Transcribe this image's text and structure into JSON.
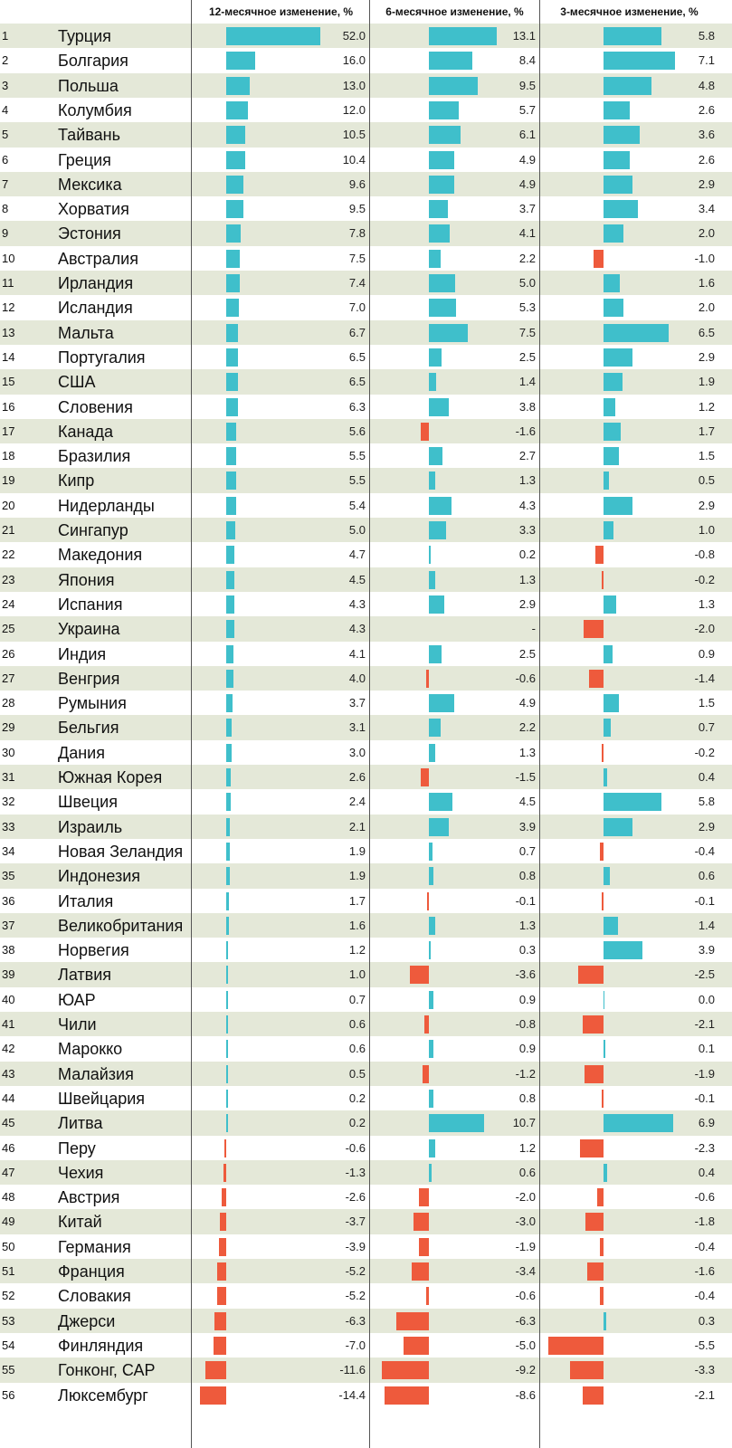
{
  "chart_data": {
    "type": "bar",
    "title": "",
    "headers": [
      "12-месячное изменение, %",
      "6-месячное изменение, %",
      "3-месячное изменение, %"
    ],
    "colors": {
      "positive": "#3fbfcb",
      "negative": "#ee5a3c"
    },
    "rows": [
      {
        "rank": "1",
        "country": "Турция",
        "v12": 52.0,
        "v6": 13.1,
        "v3": 5.8
      },
      {
        "rank": "2",
        "country": "Болгария",
        "v12": 16.0,
        "v6": 8.4,
        "v3": 7.1
      },
      {
        "rank": "3",
        "country": "Польша",
        "v12": 13.0,
        "v6": 9.5,
        "v3": 4.8
      },
      {
        "rank": "4",
        "country": "Колумбия",
        "v12": 12.0,
        "v6": 5.7,
        "v3": 2.6
      },
      {
        "rank": "5",
        "country": "Тайвань",
        "v12": 10.5,
        "v6": 6.1,
        "v3": 3.6
      },
      {
        "rank": "6",
        "country": "Греция",
        "v12": 10.4,
        "v6": 4.9,
        "v3": 2.6
      },
      {
        "rank": "7",
        "country": "Мексика",
        "v12": 9.6,
        "v6": 4.9,
        "v3": 2.9
      },
      {
        "rank": "8",
        "country": "Хорватия",
        "v12": 9.5,
        "v6": 3.7,
        "v3": 3.4
      },
      {
        "rank": "9",
        "country": "Эстония",
        "v12": 7.8,
        "v6": 4.1,
        "v3": 2.0
      },
      {
        "rank": "10",
        "country": "Австралия",
        "v12": 7.5,
        "v6": 2.2,
        "v3": -1.0
      },
      {
        "rank": "11",
        "country": "Ирландия",
        "v12": 7.4,
        "v6": 5.0,
        "v3": 1.6
      },
      {
        "rank": "12",
        "country": "Исландия",
        "v12": 7.0,
        "v6": 5.3,
        "v3": 2.0
      },
      {
        "rank": "13",
        "country": "Мальта",
        "v12": 6.7,
        "v6": 7.5,
        "v3": 6.5
      },
      {
        "rank": "14",
        "country": "Португалия",
        "v12": 6.5,
        "v6": 2.5,
        "v3": 2.9
      },
      {
        "rank": "15",
        "country": "США",
        "v12": 6.5,
        "v6": 1.4,
        "v3": 1.9
      },
      {
        "rank": "16",
        "country": "Словения",
        "v12": 6.3,
        "v6": 3.8,
        "v3": 1.2
      },
      {
        "rank": "17",
        "country": "Канада",
        "v12": 5.6,
        "v6": -1.6,
        "v3": 1.7
      },
      {
        "rank": "18",
        "country": "Бразилия",
        "v12": 5.5,
        "v6": 2.7,
        "v3": 1.5
      },
      {
        "rank": "19",
        "country": "Кипр",
        "v12": 5.5,
        "v6": 1.3,
        "v3": 0.5
      },
      {
        "rank": "20",
        "country": "Нидерланды",
        "v12": 5.4,
        "v6": 4.3,
        "v3": 2.9
      },
      {
        "rank": "21",
        "country": "Сингапур",
        "v12": 5.0,
        "v6": 3.3,
        "v3": 1.0
      },
      {
        "rank": "22",
        "country": "Македония",
        "v12": 4.7,
        "v6": 0.2,
        "v3": -0.8
      },
      {
        "rank": "23",
        "country": "Япония",
        "v12": 4.5,
        "v6": 1.3,
        "v3": -0.2
      },
      {
        "rank": "24",
        "country": "Испания",
        "v12": 4.3,
        "v6": 2.9,
        "v3": 1.3
      },
      {
        "rank": "25",
        "country": "Украина",
        "v12": 4.3,
        "v6": "-",
        "v3": -2.0
      },
      {
        "rank": "26",
        "country": "Индия",
        "v12": 4.1,
        "v6": 2.5,
        "v3": 0.9
      },
      {
        "rank": "27",
        "country": "Венгрия",
        "v12": 4.0,
        "v6": -0.6,
        "v3": -1.4
      },
      {
        "rank": "28",
        "country": "Румыния",
        "v12": 3.7,
        "v6": 4.9,
        "v3": 1.5
      },
      {
        "rank": "29",
        "country": "Бельгия",
        "v12": 3.1,
        "v6": 2.2,
        "v3": 0.7
      },
      {
        "rank": "30",
        "country": "Дания",
        "v12": 3.0,
        "v6": 1.3,
        "v3": -0.2
      },
      {
        "rank": "31",
        "country": "Южная Корея",
        "v12": 2.6,
        "v6": -1.5,
        "v3": 0.4
      },
      {
        "rank": "32",
        "country": "Швеция",
        "v12": 2.4,
        "v6": 4.5,
        "v3": 5.8
      },
      {
        "rank": "33",
        "country": "Израиль",
        "v12": 2.1,
        "v6": 3.9,
        "v3": 2.9
      },
      {
        "rank": "34",
        "country": "Новая Зеландия",
        "v12": 1.9,
        "v6": 0.7,
        "v3": -0.4
      },
      {
        "rank": "35",
        "country": "Индонезия",
        "v12": 1.9,
        "v6": 0.8,
        "v3": 0.6
      },
      {
        "rank": "36",
        "country": "Италия",
        "v12": 1.7,
        "v6": -0.1,
        "v3": -0.1
      },
      {
        "rank": "37",
        "country": "Великобритания",
        "v12": 1.6,
        "v6": 1.3,
        "v3": 1.4
      },
      {
        "rank": "38",
        "country": "Норвегия",
        "v12": 1.2,
        "v6": 0.3,
        "v3": 3.9
      },
      {
        "rank": "39",
        "country": "Латвия",
        "v12": 1.0,
        "v6": -3.6,
        "v3": -2.5
      },
      {
        "rank": "40",
        "country": "ЮАР",
        "v12": 0.7,
        "v6": 0.9,
        "v3": 0.0
      },
      {
        "rank": "41",
        "country": "Чили",
        "v12": 0.6,
        "v6": -0.8,
        "v3": -2.1
      },
      {
        "rank": "42",
        "country": "Марокко",
        "v12": 0.6,
        "v6": 0.9,
        "v3": 0.1
      },
      {
        "rank": "43",
        "country": "Малайзия",
        "v12": 0.5,
        "v6": -1.2,
        "v3": -1.9
      },
      {
        "rank": "44",
        "country": "Швейцария",
        "v12": 0.2,
        "v6": 0.8,
        "v3": -0.1
      },
      {
        "rank": "45",
        "country": "Литва",
        "v12": 0.2,
        "v6": 10.7,
        "v3": 6.9
      },
      {
        "rank": "46",
        "country": "Перу",
        "v12": -0.6,
        "v6": 1.2,
        "v3": -2.3
      },
      {
        "rank": "47",
        "country": "Чехия",
        "v12": -1.3,
        "v6": 0.6,
        "v3": 0.4
      },
      {
        "rank": "48",
        "country": "Австрия",
        "v12": -2.6,
        "v6": -2.0,
        "v3": -0.6
      },
      {
        "rank": "49",
        "country": "Китай",
        "v12": -3.7,
        "v6": -3.0,
        "v3": -1.8
      },
      {
        "rank": "50",
        "country": "Германия",
        "v12": -3.9,
        "v6": -1.9,
        "v3": -0.4
      },
      {
        "rank": "51",
        "country": "Франция",
        "v12": -5.2,
        "v6": -3.4,
        "v3": -1.6
      },
      {
        "rank": "52",
        "country": "Словакия",
        "v12": -5.2,
        "v6": -0.6,
        "v3": -0.4
      },
      {
        "rank": "53",
        "country": "Джерси",
        "v12": -6.3,
        "v6": -6.3,
        "v3": 0.3
      },
      {
        "rank": "54",
        "country": "Финляндия",
        "v12": -7.0,
        "v6": -5.0,
        "v3": -5.5
      },
      {
        "rank": "55",
        "country": "Гонконг, САР",
        "v12": -11.6,
        "v6": -9.2,
        "v3": -3.3
      },
      {
        "rank": "56",
        "country": "Люксембург",
        "v12": -14.4,
        "v6": -8.6,
        "v3": -2.1
      }
    ]
  }
}
